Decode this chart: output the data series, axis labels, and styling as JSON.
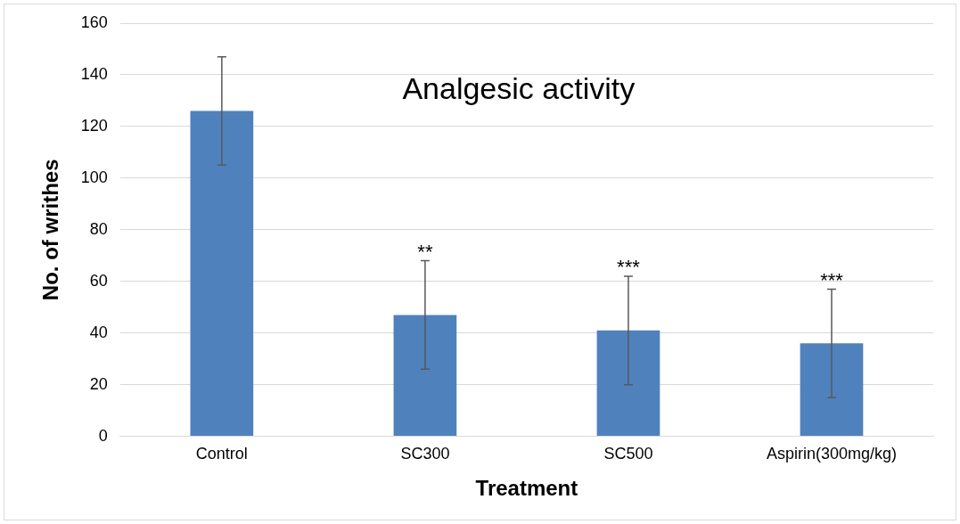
{
  "chart_data": {
    "type": "bar",
    "title": "Analgesic activity",
    "xlabel": "Treatment",
    "ylabel": "No. of writhes",
    "categories": [
      "Control",
      "SC300",
      "SC500",
      "Aspirin(300mg/kg)"
    ],
    "values": [
      126,
      47,
      41,
      36
    ],
    "errors": [
      21,
      21,
      21,
      21
    ],
    "color": "#4f81bd",
    "ylim": [
      0,
      160
    ],
    "yticks": [
      0,
      20,
      40,
      60,
      80,
      100,
      120,
      140,
      160
    ],
    "grid": "y",
    "legend": false,
    "annotations": [
      {
        "text": "**",
        "x": "SC300",
        "y": 68
      },
      {
        "text": "***",
        "x": "SC500",
        "y": 62
      },
      {
        "text": "***",
        "x": "Aspirin(300mg/kg)",
        "y": 57
      }
    ]
  }
}
